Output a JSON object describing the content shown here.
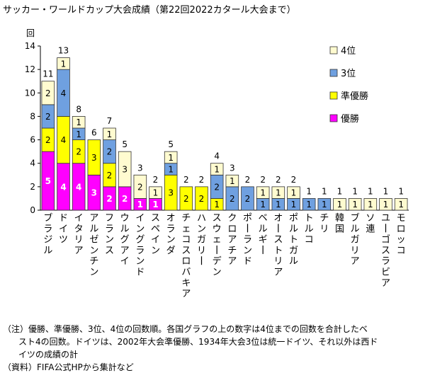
{
  "title": "サッカー・ワールドカップ大会成績（第22回2022カタール大会まで）",
  "chart_data": {
    "type": "bar",
    "stacked": true,
    "title": "サッカー・ワールドカップ大会成績（第22回2022カタール大会まで）",
    "ylabel": "回",
    "ylim": [
      0,
      14
    ],
    "yticks": [
      0,
      2,
      4,
      6,
      8,
      10,
      12,
      14
    ],
    "legend_position": "top-right",
    "categories": [
      "ブラジル",
      "ドイツ",
      "イタリア",
      "アルゼンチン",
      "フランス",
      "ウルグアイ",
      "イングランド",
      "スペイン",
      "オランダ",
      "チェコスロバキア",
      "ハンガリー",
      "スウェーデン",
      "クロアチア",
      "ポーランド",
      "ベルギー",
      "オーストリア",
      "ポルトガル",
      "トルコ",
      "チリ",
      "韓国",
      "ブルガリア",
      "ソ連",
      "ユーゴスラビア",
      "モロッコ"
    ],
    "totals": [
      11,
      13,
      8,
      6,
      7,
      5,
      3,
      2,
      5,
      2,
      2,
      4,
      3,
      2,
      2,
      2,
      2,
      1,
      1,
      1,
      1,
      1,
      1,
      1
    ],
    "series": [
      {
        "name": "優勝",
        "color": "#ff00ff",
        "values": [
          5,
          4,
          4,
          3,
          2,
          2,
          1,
          1,
          0,
          0,
          0,
          0,
          0,
          0,
          0,
          0,
          0,
          0,
          0,
          0,
          0,
          0,
          0,
          0
        ]
      },
      {
        "name": "準優勝",
        "color": "#ffff00",
        "values": [
          2,
          4,
          2,
          3,
          2,
          0,
          0,
          0,
          3,
          2,
          2,
          1,
          0,
          0,
          0,
          0,
          0,
          0,
          0,
          0,
          0,
          0,
          0,
          0
        ]
      },
      {
        "name": "3位",
        "color": "#6fa0e0",
        "values": [
          2,
          4,
          1,
          0,
          2,
          0,
          0,
          0,
          1,
          0,
          0,
          2,
          2,
          2,
          1,
          1,
          1,
          1,
          1,
          0,
          0,
          0,
          0,
          0
        ]
      },
      {
        "name": "4位",
        "color": "#fffbd0",
        "values": [
          2,
          1,
          1,
          0,
          1,
          3,
          2,
          1,
          1,
          0,
          0,
          1,
          1,
          0,
          1,
          1,
          1,
          0,
          0,
          1,
          1,
          1,
          1,
          1
        ]
      }
    ],
    "legend_order": [
      "4位",
      "3位",
      "準優勝",
      "優勝"
    ]
  },
  "notes": {
    "line1": "（注）優勝、準優勝、3位、4位の回数順。各国グラフの上の数字は4位までの回数を合計したベ",
    "line2": "スト4の回数。ドイツは、2002年大会準優勝、1934年大会3位は統一ドイツ、それ以外は西ド",
    "line3": "イツの成績の計",
    "line4": "（資料）FIFA公式HPから集計など"
  }
}
